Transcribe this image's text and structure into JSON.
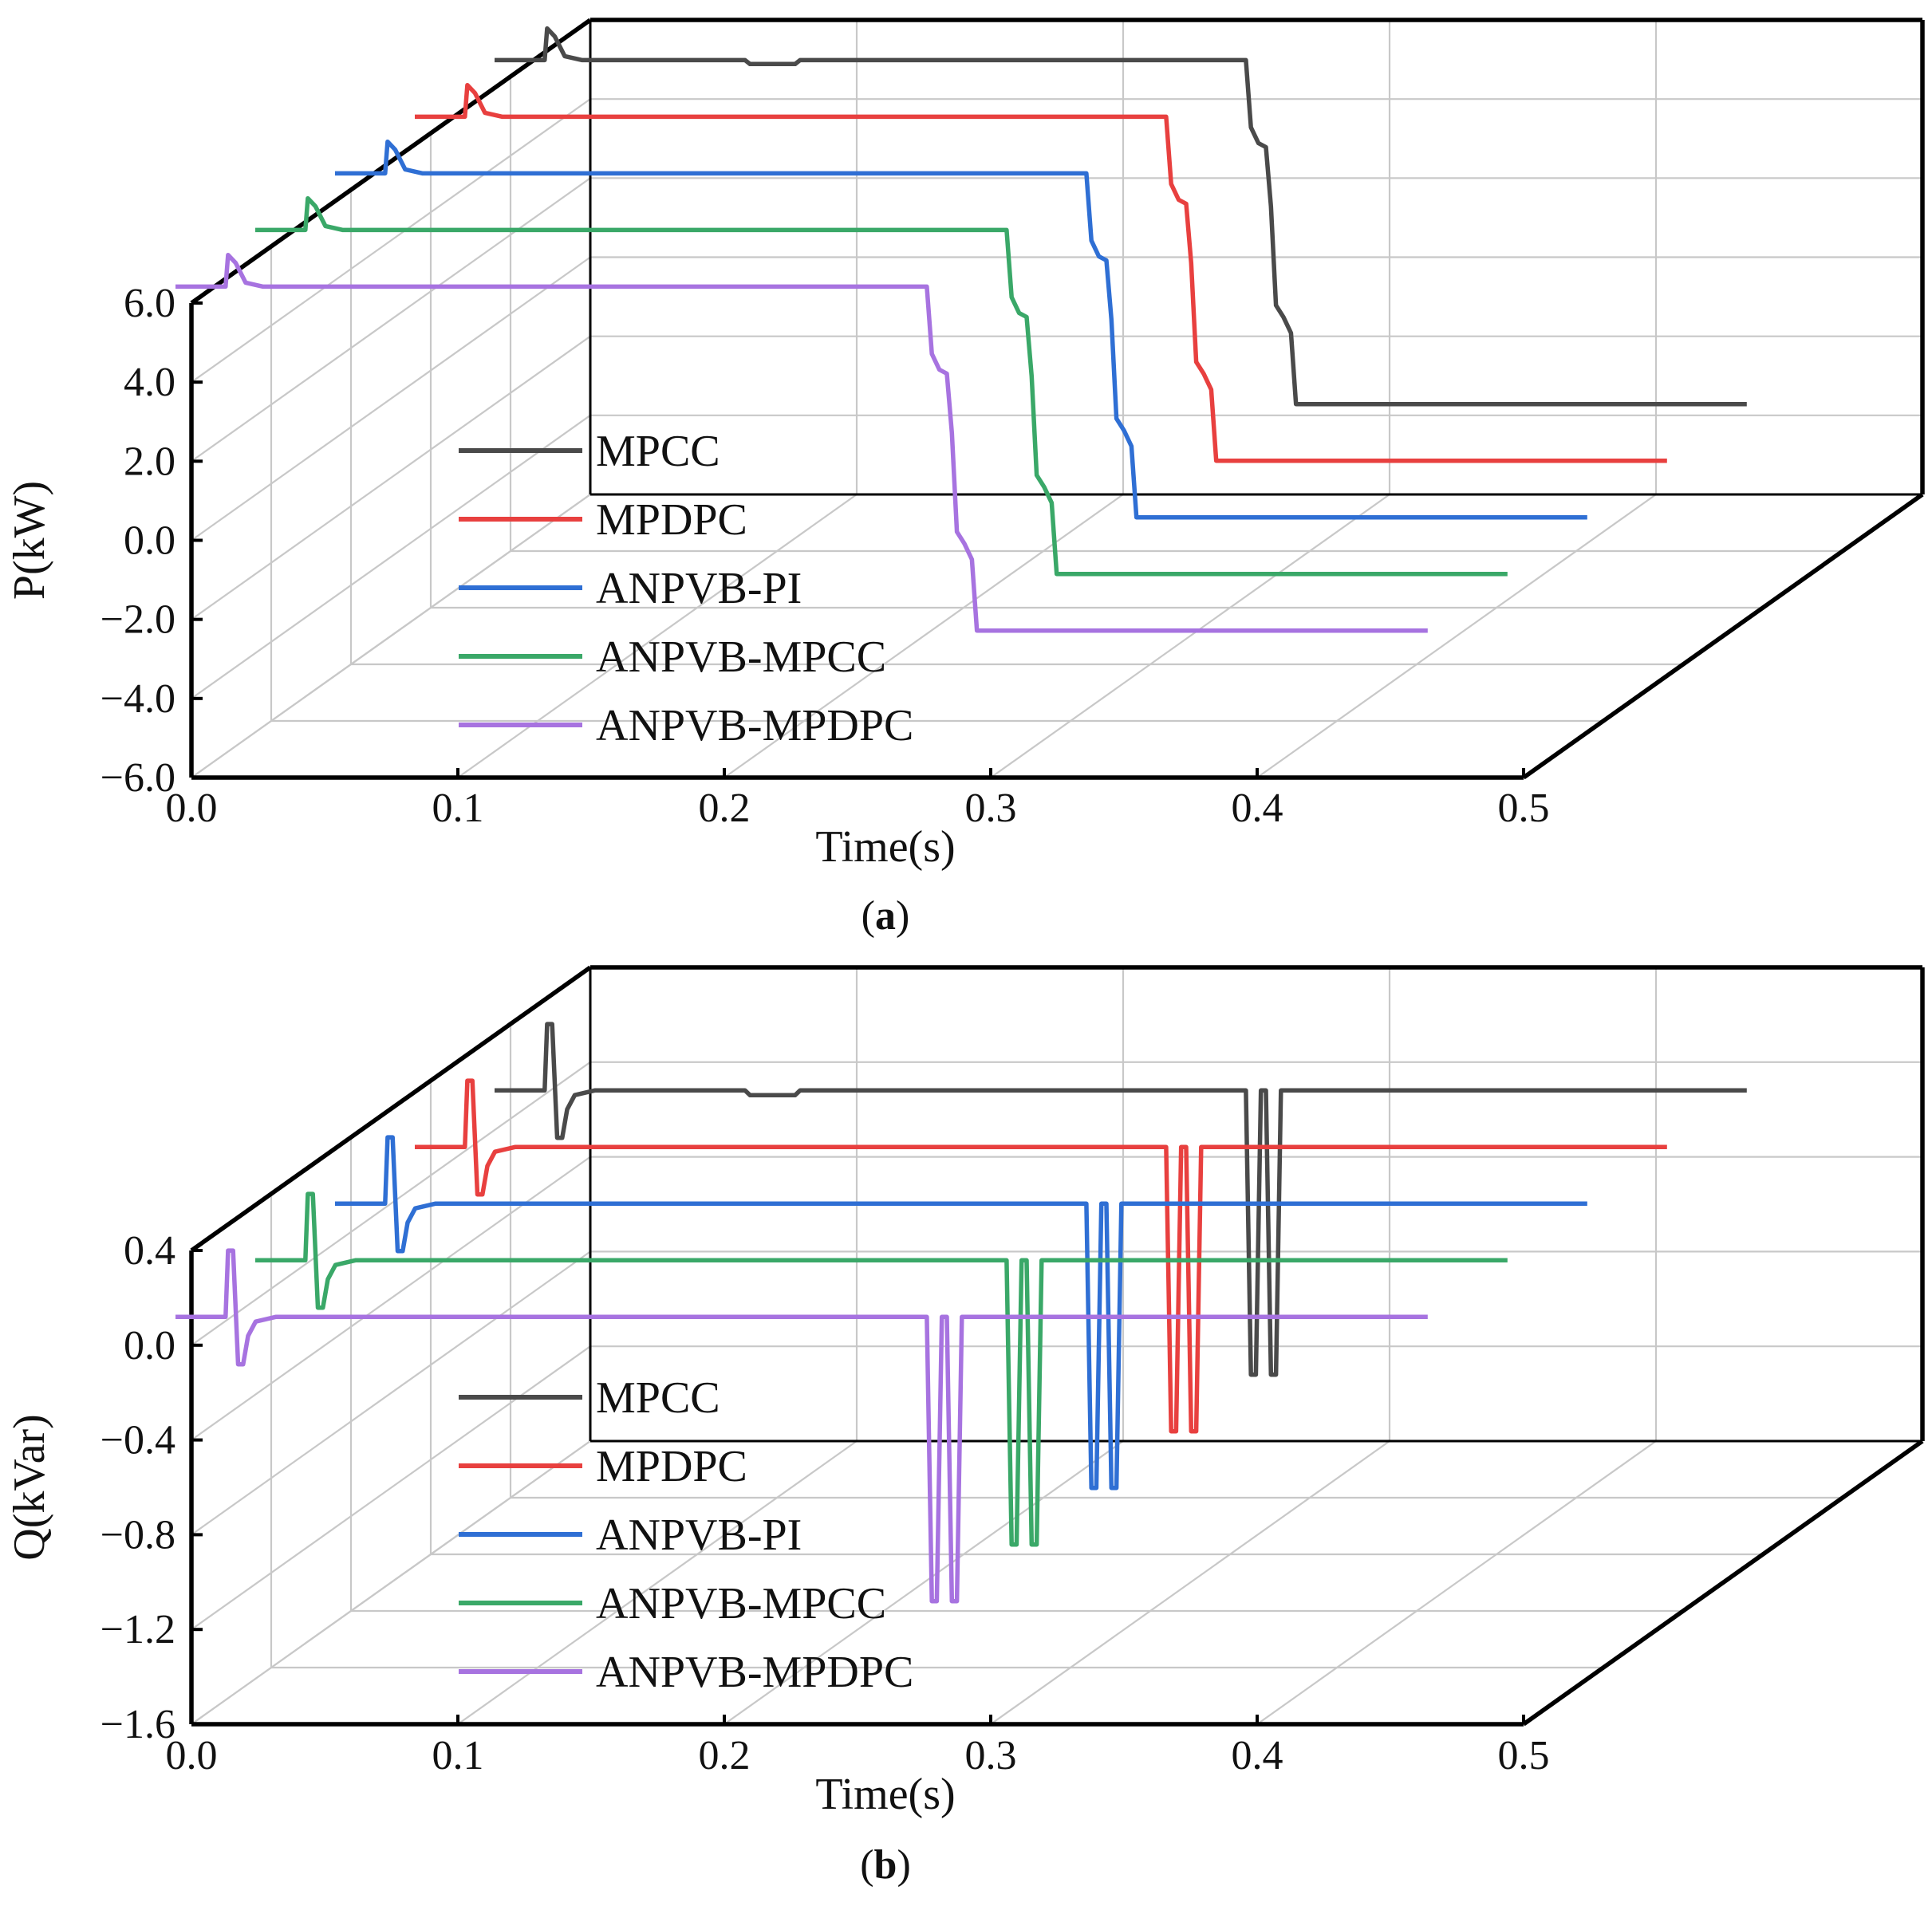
{
  "chart_data": [
    {
      "type": "line",
      "panel_label": "a",
      "xlabel": "Time(s)",
      "ylabel": "P(kW)",
      "xlim": [
        0.0,
        0.5
      ],
      "ylim": [
        -6.0,
        6.0
      ],
      "x_ticks": [
        "0.0",
        "0.1",
        "0.2",
        "0.3",
        "0.4",
        "0.5"
      ],
      "y_ticks": [
        "−6.0",
        "−4.0",
        "−2.0",
        "0.0",
        "2.0",
        "4.0",
        "6.0"
      ],
      "grid": true,
      "legend_position": "center-left",
      "series": [
        {
          "name": "MPCC",
          "color": "#4a4a4a",
          "depth_index": 4,
          "points": [
            [
              0.0,
              5.7
            ],
            [
              0.02,
              5.7
            ],
            [
              0.021,
              6.5
            ],
            [
              0.024,
              6.3
            ],
            [
              0.028,
              5.8
            ],
            [
              0.035,
              5.7
            ],
            [
              0.1,
              5.7
            ],
            [
              0.102,
              5.6
            ],
            [
              0.12,
              5.6
            ],
            [
              0.122,
              5.7
            ],
            [
              0.3,
              5.7
            ],
            [
              0.302,
              4.0
            ],
            [
              0.305,
              3.6
            ],
            [
              0.308,
              3.5
            ],
            [
              0.31,
              2.0
            ],
            [
              0.312,
              -0.5
            ],
            [
              0.315,
              -0.8
            ],
            [
              0.318,
              -1.2
            ],
            [
              0.32,
              -3.0
            ],
            [
              0.5,
              -3.0
            ]
          ]
        },
        {
          "name": "MPDPC",
          "color": "#e8403f",
          "depth_index": 3,
          "points": [
            [
              0.0,
              5.7
            ],
            [
              0.02,
              5.7
            ],
            [
              0.021,
              6.5
            ],
            [
              0.024,
              6.3
            ],
            [
              0.028,
              5.8
            ],
            [
              0.035,
              5.7
            ],
            [
              0.3,
              5.7
            ],
            [
              0.302,
              4.0
            ],
            [
              0.305,
              3.6
            ],
            [
              0.308,
              3.5
            ],
            [
              0.31,
              2.0
            ],
            [
              0.312,
              -0.5
            ],
            [
              0.315,
              -0.8
            ],
            [
              0.318,
              -1.2
            ],
            [
              0.32,
              -3.0
            ],
            [
              0.5,
              -3.0
            ]
          ]
        },
        {
          "name": "ANPVB-PI",
          "color": "#2f6fd4",
          "depth_index": 2,
          "points": [
            [
              0.0,
              5.7
            ],
            [
              0.02,
              5.7
            ],
            [
              0.021,
              6.5
            ],
            [
              0.024,
              6.3
            ],
            [
              0.028,
              5.8
            ],
            [
              0.035,
              5.7
            ],
            [
              0.3,
              5.7
            ],
            [
              0.302,
              4.0
            ],
            [
              0.305,
              3.6
            ],
            [
              0.308,
              3.5
            ],
            [
              0.31,
              2.0
            ],
            [
              0.312,
              -0.5
            ],
            [
              0.315,
              -0.8
            ],
            [
              0.318,
              -1.2
            ],
            [
              0.32,
              -3.0
            ],
            [
              0.5,
              -3.0
            ]
          ]
        },
        {
          "name": "ANPVB-MPCC",
          "color": "#3aa868",
          "depth_index": 1,
          "points": [
            [
              0.0,
              5.7
            ],
            [
              0.02,
              5.7
            ],
            [
              0.021,
              6.5
            ],
            [
              0.024,
              6.3
            ],
            [
              0.028,
              5.8
            ],
            [
              0.035,
              5.7
            ],
            [
              0.3,
              5.7
            ],
            [
              0.302,
              4.0
            ],
            [
              0.305,
              3.6
            ],
            [
              0.308,
              3.5
            ],
            [
              0.31,
              2.0
            ],
            [
              0.312,
              -0.5
            ],
            [
              0.315,
              -0.8
            ],
            [
              0.318,
              -1.2
            ],
            [
              0.32,
              -3.0
            ],
            [
              0.5,
              -3.0
            ]
          ]
        },
        {
          "name": "ANPVB-MPDPC",
          "color": "#a773e0",
          "depth_index": 0,
          "points": [
            [
              0.0,
              5.7
            ],
            [
              0.02,
              5.7
            ],
            [
              0.021,
              6.5
            ],
            [
              0.024,
              6.3
            ],
            [
              0.028,
              5.8
            ],
            [
              0.035,
              5.7
            ],
            [
              0.3,
              5.7
            ],
            [
              0.302,
              4.0
            ],
            [
              0.305,
              3.6
            ],
            [
              0.308,
              3.5
            ],
            [
              0.31,
              2.0
            ],
            [
              0.312,
              -0.5
            ],
            [
              0.315,
              -0.8
            ],
            [
              0.318,
              -1.2
            ],
            [
              0.32,
              -3.0
            ],
            [
              0.5,
              -3.0
            ]
          ]
        }
      ]
    },
    {
      "type": "line",
      "panel_label": "b",
      "xlabel": "Time(s)",
      "ylabel": "Q(kVar)",
      "xlim": [
        0.0,
        0.5
      ],
      "ylim": [
        -1.6,
        0.4
      ],
      "x_ticks": [
        "0.0",
        "0.1",
        "0.2",
        "0.3",
        "0.4",
        "0.5"
      ],
      "y_ticks": [
        "−1.6",
        "−1.2",
        "−0.8",
        "−0.4",
        "0.0",
        "0.4"
      ],
      "grid": true,
      "legend_position": "center-left",
      "series": [
        {
          "name": "MPCC",
          "color": "#4a4a4a",
          "depth_index": 4,
          "points": [
            [
              0.0,
              0.0
            ],
            [
              0.02,
              0.0
            ],
            [
              0.021,
              0.28
            ],
            [
              0.023,
              0.28
            ],
            [
              0.025,
              -0.2
            ],
            [
              0.027,
              -0.2
            ],
            [
              0.029,
              -0.08
            ],
            [
              0.032,
              -0.02
            ],
            [
              0.04,
              0.0
            ],
            [
              0.1,
              0.0
            ],
            [
              0.102,
              -0.02
            ],
            [
              0.12,
              -0.02
            ],
            [
              0.122,
              0.0
            ],
            [
              0.3,
              0.0
            ],
            [
              0.302,
              -1.2
            ],
            [
              0.304,
              -1.2
            ],
            [
              0.306,
              0.0
            ],
            [
              0.308,
              0.0
            ],
            [
              0.31,
              -1.2
            ],
            [
              0.312,
              -1.2
            ],
            [
              0.314,
              0.0
            ],
            [
              0.5,
              0.0
            ]
          ]
        },
        {
          "name": "MPDPC",
          "color": "#e8403f",
          "depth_index": 3,
          "points": [
            [
              0.0,
              0.0
            ],
            [
              0.02,
              0.0
            ],
            [
              0.021,
              0.28
            ],
            [
              0.023,
              0.28
            ],
            [
              0.025,
              -0.2
            ],
            [
              0.027,
              -0.2
            ],
            [
              0.029,
              -0.08
            ],
            [
              0.032,
              -0.02
            ],
            [
              0.04,
              0.0
            ],
            [
              0.3,
              0.0
            ],
            [
              0.302,
              -1.2
            ],
            [
              0.304,
              -1.2
            ],
            [
              0.306,
              0.0
            ],
            [
              0.308,
              0.0
            ],
            [
              0.31,
              -1.2
            ],
            [
              0.312,
              -1.2
            ],
            [
              0.314,
              0.0
            ],
            [
              0.5,
              0.0
            ]
          ]
        },
        {
          "name": "ANPVB-PI",
          "color": "#2f6fd4",
          "depth_index": 2,
          "points": [
            [
              0.0,
              0.0
            ],
            [
              0.02,
              0.0
            ],
            [
              0.021,
              0.28
            ],
            [
              0.023,
              0.28
            ],
            [
              0.025,
              -0.2
            ],
            [
              0.027,
              -0.2
            ],
            [
              0.029,
              -0.08
            ],
            [
              0.032,
              -0.02
            ],
            [
              0.04,
              0.0
            ],
            [
              0.3,
              0.0
            ],
            [
              0.302,
              -1.2
            ],
            [
              0.304,
              -1.2
            ],
            [
              0.306,
              0.0
            ],
            [
              0.308,
              0.0
            ],
            [
              0.31,
              -1.2
            ],
            [
              0.312,
              -1.2
            ],
            [
              0.314,
              0.0
            ],
            [
              0.5,
              0.0
            ]
          ]
        },
        {
          "name": "ANPVB-MPCC",
          "color": "#3aa868",
          "depth_index": 1,
          "points": [
            [
              0.0,
              0.0
            ],
            [
              0.02,
              0.0
            ],
            [
              0.021,
              0.28
            ],
            [
              0.023,
              0.28
            ],
            [
              0.025,
              -0.2
            ],
            [
              0.027,
              -0.2
            ],
            [
              0.029,
              -0.08
            ],
            [
              0.032,
              -0.02
            ],
            [
              0.04,
              0.0
            ],
            [
              0.3,
              0.0
            ],
            [
              0.302,
              -1.2
            ],
            [
              0.304,
              -1.2
            ],
            [
              0.306,
              0.0
            ],
            [
              0.308,
              0.0
            ],
            [
              0.31,
              -1.2
            ],
            [
              0.312,
              -1.2
            ],
            [
              0.314,
              0.0
            ],
            [
              0.5,
              0.0
            ]
          ]
        },
        {
          "name": "ANPVB-MPDPC",
          "color": "#a773e0",
          "depth_index": 0,
          "points": [
            [
              0.0,
              0.0
            ],
            [
              0.02,
              0.0
            ],
            [
              0.021,
              0.28
            ],
            [
              0.023,
              0.28
            ],
            [
              0.025,
              -0.2
            ],
            [
              0.027,
              -0.2
            ],
            [
              0.029,
              -0.08
            ],
            [
              0.032,
              -0.02
            ],
            [
              0.04,
              0.0
            ],
            [
              0.3,
              0.0
            ],
            [
              0.302,
              -1.2
            ],
            [
              0.304,
              -1.2
            ],
            [
              0.306,
              0.0
            ],
            [
              0.308,
              0.0
            ],
            [
              0.31,
              -1.2
            ],
            [
              0.312,
              -1.2
            ],
            [
              0.314,
              0.0
            ],
            [
              0.5,
              0.0
            ]
          ]
        }
      ]
    }
  ]
}
